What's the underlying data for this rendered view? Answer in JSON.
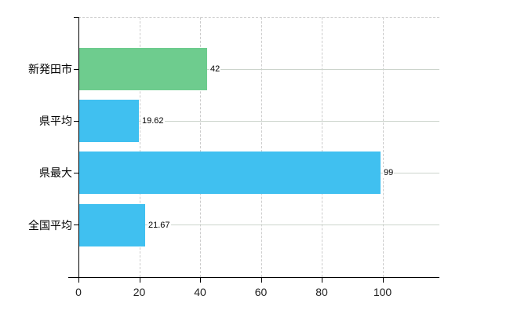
{
  "chart_data": {
    "type": "bar",
    "orientation": "horizontal",
    "title": "",
    "categories": [
      "新発田市",
      "県平均",
      "県最大",
      "全国平均"
    ],
    "series": [
      {
        "name": "",
        "values": [
          42,
          19.62,
          99,
          21.67
        ]
      }
    ],
    "value_labels": [
      "42",
      "19.62",
      "99",
      "21.67"
    ],
    "bar_colors": [
      "#6ecc8e",
      "#40c0f0",
      "#40c0f0",
      "#40c0f0"
    ],
    "x_tick_labels": [
      "0",
      "20",
      "40",
      "60",
      "80",
      "100"
    ],
    "x_tick_values": [
      0,
      20,
      40,
      60,
      80,
      100
    ],
    "xlim": [
      0,
      118.7
    ],
    "legend": "none",
    "grid": {
      "vertical_lines": "dashed",
      "horizontal_lines": "solid",
      "top_border": "dashed"
    },
    "colors": {
      "highlight_bar": "#6ecc8e",
      "default_bar": "#40c0f0",
      "axis": "#000000",
      "vertical_gridline": "#cccccc",
      "horizontal_gridline": "#ccd4cc",
      "label_text": "#000000",
      "tick_text": "#222222",
      "background": "#ffffff"
    }
  }
}
